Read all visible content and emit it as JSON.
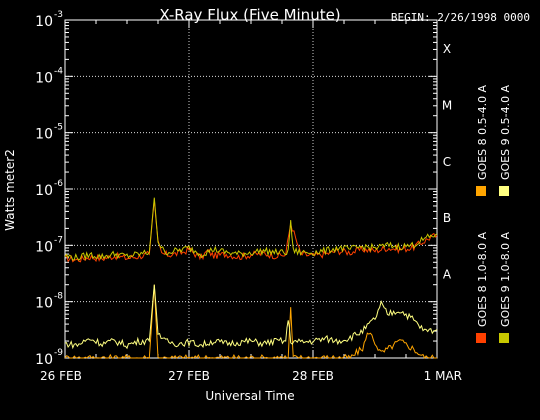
{
  "header": {
    "title": "X-Ray Flux (Five Minute)",
    "begin": "BEGIN: 2/26/1998 0000"
  },
  "chart_data": {
    "type": "line",
    "title": "X-Ray Flux (Five Minute)",
    "xlabel": "Universal Time",
    "ylabel": "Watts meter2",
    "xlim": [
      "1998-02-26 00:00",
      "1998-03-01 00:00"
    ],
    "ylim": [
      1e-09,
      0.001
    ],
    "y_scale": "log",
    "grid": true,
    "legend_placement": "right-vertical",
    "x_ticks": [
      "26 FEB",
      "27 FEB",
      "28 FEB",
      "1 MAR"
    ],
    "y_ticks": [
      {
        "base": "10",
        "exp": "-9"
      },
      {
        "base": "10",
        "exp": "-8"
      },
      {
        "base": "10",
        "exp": "-7"
      },
      {
        "base": "10",
        "exp": "-6"
      },
      {
        "base": "10",
        "exp": "-5"
      },
      {
        "base": "10",
        "exp": "-4"
      },
      {
        "base": "10",
        "exp": "-3"
      }
    ],
    "flare_classes": [
      {
        "label": "A",
        "flux": 1e-08
      },
      {
        "label": "B",
        "flux": 1e-07
      },
      {
        "label": "C",
        "flux": 1e-06
      },
      {
        "label": "M",
        "flux": 1e-05
      },
      {
        "label": "X",
        "flux": 0.0001
      }
    ],
    "series": [
      {
        "name": "GOES 8 1.0-8.0 A",
        "color": "#ff4000",
        "x_days": [
          0.0,
          0.1,
          0.2,
          0.3,
          0.4,
          0.5,
          0.6,
          0.68,
          0.72,
          0.75,
          0.78,
          0.85,
          0.95,
          1.0,
          1.05,
          1.1,
          1.15,
          1.2,
          1.3,
          1.4,
          1.5,
          1.6,
          1.7,
          1.78,
          1.82,
          1.9,
          2.0,
          2.1,
          2.2,
          2.3,
          2.4,
          2.5,
          2.6,
          2.7,
          2.8,
          2.9,
          2.95,
          3.0
        ],
        "values": [
          6e-08,
          5.5e-08,
          6.2e-08,
          5.8e-08,
          6.5e-08,
          5.9e-08,
          6.4e-08,
          7e-08,
          6.5e-07,
          1.1e-07,
          7e-08,
          6.8e-08,
          7.5e-08,
          8.5e-08,
          7e-08,
          6e-08,
          8e-08,
          6.5e-08,
          7e-08,
          6.2e-08,
          6.8e-08,
          7.2e-08,
          6.5e-08,
          6.8e-08,
          2.5e-07,
          7e-08,
          6.5e-08,
          7e-08,
          8e-08,
          7.5e-08,
          8.5e-08,
          8e-08,
          9e-08,
          8.5e-08,
          9e-08,
          1.2e-07,
          1.4e-07,
          1.5e-07
        ]
      },
      {
        "name": "GOES 8 0.5-4.0 A",
        "color": "#ffa500",
        "x_days": [
          0.0,
          0.68,
          0.72,
          0.75,
          1.0,
          1.8,
          1.82,
          1.84,
          2.3,
          2.4,
          2.45,
          2.55,
          2.7,
          2.8,
          2.9,
          3.0
        ],
        "values": [
          1e-09,
          1e-09,
          2e-08,
          1e-09,
          1e-09,
          1e-09,
          8e-09,
          1e-09,
          1e-09,
          1.5e-09,
          3e-09,
          1.2e-09,
          2e-09,
          1.5e-09,
          1e-09,
          1e-09
        ]
      },
      {
        "name": "GOES 9 1.0-8.0 A",
        "color": "#c8c800",
        "x_days": [
          0.0,
          0.1,
          0.2,
          0.3,
          0.4,
          0.5,
          0.6,
          0.68,
          0.72,
          0.75,
          0.8,
          0.9,
          1.0,
          1.1,
          1.2,
          1.3,
          1.4,
          1.5,
          1.6,
          1.7,
          1.8,
          1.82,
          1.84,
          1.9,
          2.0,
          2.1,
          2.2,
          2.3,
          2.4,
          2.5,
          2.6,
          2.7,
          2.8,
          2.9,
          3.0
        ],
        "values": [
          6.5e-08,
          6e-08,
          6.8e-08,
          6.3e-08,
          7e-08,
          6.4e-08,
          7e-08,
          7.5e-08,
          7e-07,
          1.2e-07,
          7.5e-08,
          8e-08,
          9e-08,
          7e-08,
          8.5e-08,
          7.5e-08,
          7e-08,
          7.5e-08,
          8e-08,
          7.5e-08,
          7.5e-08,
          2.8e-07,
          8e-08,
          7.5e-08,
          7.5e-08,
          8e-08,
          9e-08,
          8.5e-08,
          9.5e-08,
          9e-08,
          1e-07,
          9.5e-08,
          1e-07,
          1.3e-07,
          1.6e-07
        ]
      },
      {
        "name": "GOES 9 0.5-4.0 A",
        "color": "#ffff80",
        "x_days": [
          0.0,
          0.1,
          0.2,
          0.3,
          0.4,
          0.5,
          0.6,
          0.68,
          0.72,
          0.75,
          0.8,
          0.9,
          1.0,
          1.1,
          1.2,
          1.3,
          1.4,
          1.5,
          1.6,
          1.7,
          1.78,
          1.8,
          1.82,
          1.9,
          2.0,
          2.1,
          2.2,
          2.3,
          2.4,
          2.5,
          2.55,
          2.6,
          2.7,
          2.8,
          2.9,
          3.0
        ],
        "values": [
          1.8e-09,
          1.7e-09,
          2.2e-09,
          1.8e-09,
          2e-09,
          1.7e-09,
          2e-09,
          2e-09,
          2e-08,
          3e-09,
          2e-09,
          1.8e-09,
          1.9e-09,
          1.7e-09,
          2e-09,
          1.8e-09,
          1.9e-09,
          2e-09,
          1.8e-09,
          2e-09,
          2e-09,
          5e-09,
          2e-09,
          1.9e-09,
          2e-09,
          2.2e-09,
          2e-09,
          2.3e-09,
          3e-09,
          5e-09,
          9e-09,
          6e-09,
          7e-09,
          5e-09,
          3e-09,
          3.2e-09
        ]
      }
    ]
  }
}
